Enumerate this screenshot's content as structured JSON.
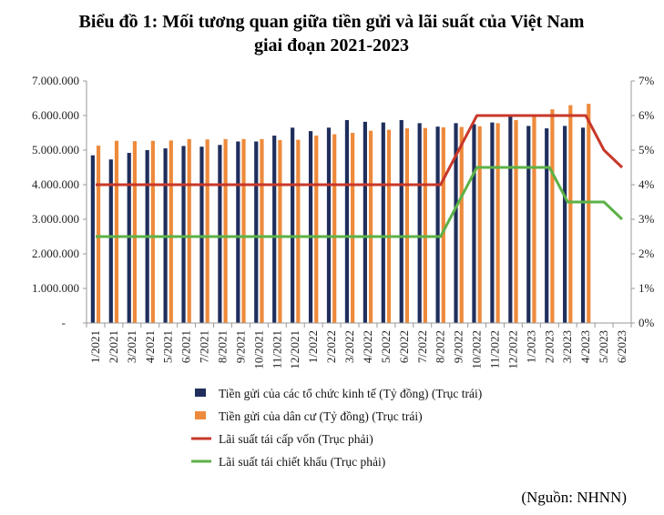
{
  "chart_data": {
    "type": "bar",
    "title": "Biểu đồ 1: Mối tương quan giữa tiền gửi và lãi suất của Việt Nam",
    "subtitle": "giai đoạn 2021-2023",
    "source": "(Nguồn: NHNN)",
    "categories": [
      "1/2021",
      "2/2021",
      "3/2021",
      "4/2021",
      "5/2021",
      "6/2021",
      "7/2021",
      "8/2021",
      "9/2021",
      "10/2021",
      "11/2021",
      "12/2021",
      "1/2022",
      "2/2022",
      "3/2022",
      "4/2022",
      "5/2022",
      "6/2022",
      "7/2022",
      "8/2022",
      "9/2022",
      "10/2022",
      "11/2022",
      "12/2022",
      "1/2023",
      "2/2023",
      "3/2023",
      "4/2023",
      "5/2023",
      "6/2023"
    ],
    "y_left_ticks": [
      "-",
      "1.000.000",
      "2.000.000",
      "3.000.000",
      "4.000.000",
      "5.000.000",
      "6.000.000",
      "7.000.000"
    ],
    "y_right_ticks": [
      "0%",
      "1%",
      "2%",
      "3%",
      "4%",
      "5%",
      "6%",
      "7%"
    ],
    "y_left_lim": [
      0,
      7000000
    ],
    "y_right_lim": [
      0,
      7
    ],
    "grid": false,
    "legend_position": "bottom-left",
    "series": [
      {
        "name": "Tiền gửi của các tổ chức kinh tế (Tỷ đồng) (Trục trái)",
        "type": "bar",
        "axis": "left",
        "color": "#1f2e5c",
        "values": [
          4850000,
          4730000,
          4920000,
          5000000,
          5050000,
          5120000,
          5100000,
          5150000,
          5250000,
          5250000,
          5420000,
          5650000,
          5550000,
          5650000,
          5870000,
          5820000,
          5800000,
          5870000,
          5780000,
          5680000,
          5780000,
          5750000,
          5800000,
          6000000,
          5700000,
          5630000,
          5700000,
          5650000,
          null,
          null
        ]
      },
      {
        "name": "Tiền gửi của dân cư (Tỷ đồng) (Trục trái)",
        "type": "bar",
        "axis": "left",
        "color": "#ee8a3c",
        "values": [
          5130000,
          5270000,
          5260000,
          5270000,
          5280000,
          5320000,
          5310000,
          5320000,
          5320000,
          5320000,
          5290000,
          5300000,
          5420000,
          5460000,
          5500000,
          5560000,
          5590000,
          5630000,
          5640000,
          5660000,
          5670000,
          5690000,
          5780000,
          5870000,
          6000000,
          6180000,
          6300000,
          6340000,
          null,
          null
        ]
      },
      {
        "name": "Lãi suất tái cấp vốn (Trục phải)",
        "type": "line",
        "axis": "right",
        "color": "#c8382a",
        "values": [
          4,
          4,
          4,
          4,
          4,
          4,
          4,
          4,
          4,
          4,
          4,
          4,
          4,
          4,
          4,
          4,
          4,
          4,
          4,
          4,
          5,
          6,
          6,
          6,
          6,
          6,
          6,
          6,
          5,
          4.5
        ]
      },
      {
        "name": "Lãi suất tái chiết khấu (Trục phải)",
        "type": "line",
        "axis": "right",
        "color": "#5cb247",
        "values": [
          2.5,
          2.5,
          2.5,
          2.5,
          2.5,
          2.5,
          2.5,
          2.5,
          2.5,
          2.5,
          2.5,
          2.5,
          2.5,
          2.5,
          2.5,
          2.5,
          2.5,
          2.5,
          2.5,
          2.5,
          3.5,
          4.5,
          4.5,
          4.5,
          4.5,
          4.5,
          3.5,
          3.5,
          3.5,
          3.0
        ]
      }
    ]
  }
}
